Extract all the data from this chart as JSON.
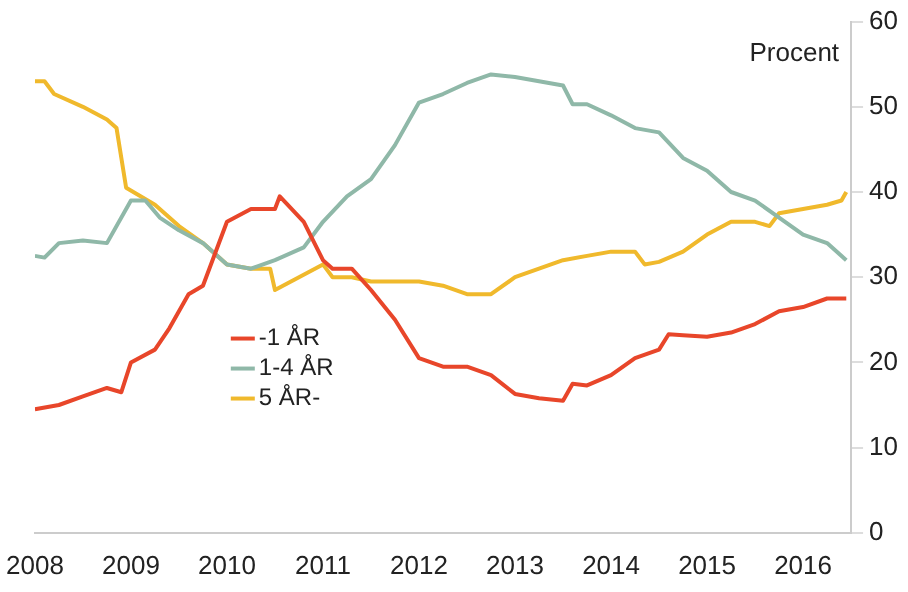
{
  "chart_data": {
    "type": "line",
    "ylabel": "Procent",
    "xlim": [
      2008,
      2016.5
    ],
    "xticks": [
      2008,
      2009,
      2010,
      2011,
      2012,
      2013,
      2014,
      2015,
      2016
    ],
    "ylim": [
      0,
      60
    ],
    "yticks": [
      0,
      10,
      20,
      30,
      40,
      50,
      60
    ],
    "grid": false,
    "legend": "bottom left",
    "marker": "none",
    "line_style": "solid",
    "x": [
      2008,
      2008.25,
      2008.5,
      2008.75,
      2008.9,
      2009,
      2009.25,
      2009.4,
      2009.6,
      2009.75,
      2010,
      2010.25,
      2010.5,
      2010.55,
      2010.8,
      2011,
      2011.1,
      2011.3,
      2011.5,
      2011.75,
      2012,
      2012.25,
      2012.5,
      2012.75,
      2013,
      2013.25,
      2013.5,
      2013.6,
      2013.75,
      2014,
      2014.25,
      2014.5,
      2014.6,
      2014.75,
      2015,
      2015.25,
      2015.5,
      2015.75,
      2016,
      2016.25,
      2016.45
    ],
    "series": [
      {
        "name": "-1 ÅR",
        "color": "#e8462a",
        "values": [
          14.5,
          15,
          16,
          17,
          16.5,
          20,
          21.5,
          24,
          28,
          29,
          36.5,
          38,
          38,
          39.5,
          36.5,
          32,
          31,
          31,
          28.5,
          25,
          20.5,
          19.5,
          19.5,
          18.5,
          16.3,
          15.8,
          15.5,
          17.5,
          17.3,
          18.5,
          20.5,
          21.5,
          23.3,
          23.2,
          23,
          23.5,
          24.5,
          26,
          26.5,
          27.5,
          27.5
        ]
      },
      {
        "name": "1-4 ÅR",
        "color": "#8fb8a8",
        "x": [
          2008,
          2008.1,
          2008.25,
          2008.5,
          2008.75,
          2009,
          2009.15,
          2009.3,
          2009.5,
          2009.75,
          2010,
          2010.25,
          2010.5,
          2010.8,
          2011,
          2011.25,
          2011.5,
          2011.75,
          2012,
          2012.25,
          2012.5,
          2012.75,
          2013,
          2013.25,
          2013.5,
          2013.6,
          2013.75,
          2014,
          2014.25,
          2014.5,
          2014.75,
          2015,
          2015.25,
          2015.5,
          2015.75,
          2016,
          2016.25,
          2016.45
        ],
        "values": [
          32.5,
          32.3,
          34,
          34.3,
          34,
          39,
          39,
          37,
          35.5,
          34,
          31.5,
          31,
          32,
          33.5,
          36.5,
          39.5,
          41.5,
          45.5,
          50.5,
          51.5,
          52.8,
          53.8,
          53.5,
          53,
          52.5,
          50.3,
          50.3,
          49,
          47.5,
          47,
          44,
          42.5,
          40,
          39,
          37,
          35,
          34,
          32
        ]
      },
      {
        "name": "5 ÅR-",
        "color": "#f0b92c",
        "x": [
          2008,
          2008.1,
          2008.2,
          2008.5,
          2008.75,
          2008.85,
          2008.95,
          2009.25,
          2009.5,
          2009.75,
          2010,
          2010.25,
          2010.45,
          2010.5,
          2010.75,
          2011,
          2011.1,
          2011.3,
          2011.5,
          2011.75,
          2012,
          2012.25,
          2012.5,
          2012.75,
          2013,
          2013.25,
          2013.5,
          2013.75,
          2014,
          2014.25,
          2014.35,
          2014.5,
          2014.75,
          2015,
          2015.25,
          2015.5,
          2015.65,
          2015.75,
          2016,
          2016.25,
          2016.4,
          2016.45
        ],
        "values": [
          53,
          53,
          51.5,
          50,
          48.5,
          47.5,
          40.5,
          38.5,
          36,
          34,
          31.5,
          31,
          31,
          28.5,
          30,
          31.5,
          30,
          30,
          29.5,
          29.5,
          29.5,
          29,
          28,
          28,
          30,
          31,
          32,
          32.5,
          33,
          33,
          31.5,
          31.8,
          33,
          35,
          36.5,
          36.5,
          36,
          37.5,
          38,
          38.5,
          39,
          40
        ]
      }
    ]
  }
}
